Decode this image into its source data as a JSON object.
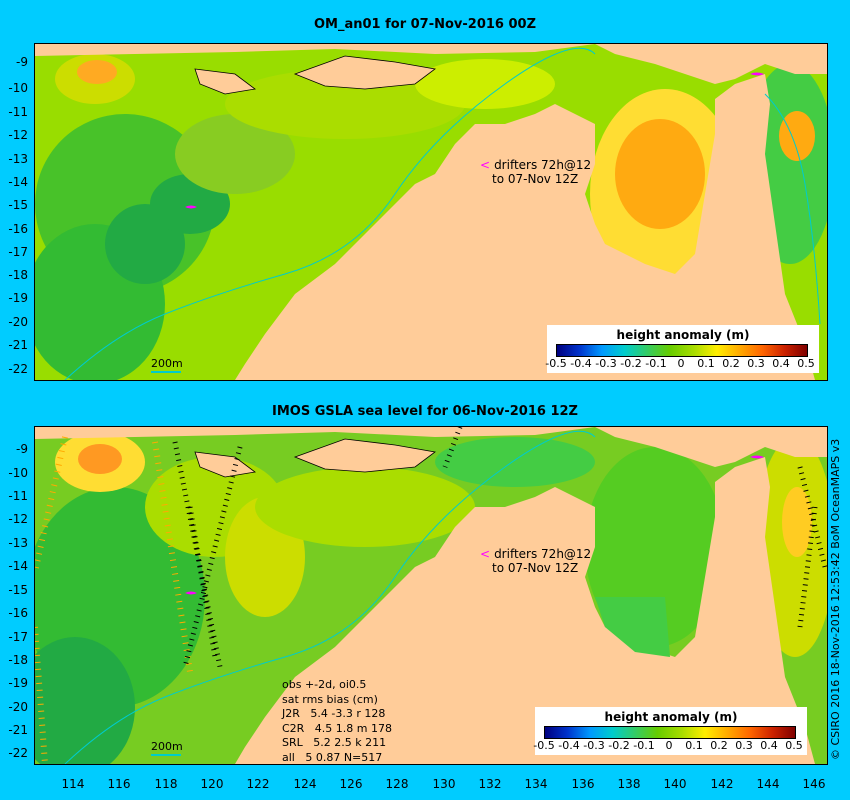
{
  "panel1": {
    "title": "OM_an01 for 07-Nov-2016 00Z",
    "drifter_note_line1": "drifters 72h@12",
    "drifter_note_line2": "to 07-Nov 12Z",
    "scale_label": "200m"
  },
  "panel2": {
    "title": "IMOS GSLA sea level  for 06-Nov-2016 12Z",
    "drifter_note_line1": "drifters 72h@12",
    "drifter_note_line2": "to 07-Nov 12Z",
    "scale_label": "200m",
    "stats": [
      "obs +-2d, oi0.5",
      "sat rms bias (cm)",
      "J2R   5.4 -3.3 r 128",
      "C2R   4.5 1.8 m 178",
      "SRL   5.2 2.5 k 211",
      "all   5 0.87 N=517"
    ]
  },
  "legend": {
    "title": "height anomaly (m)",
    "labels": [
      "-0.5",
      "-0.4",
      "-0.3",
      "-0.2",
      "-0.1",
      "0",
      "0.1",
      "0.2",
      "0.3",
      "0.4",
      "0.5"
    ]
  },
  "y_ticks": [
    "-9",
    "-10",
    "-11",
    "-12",
    "-13",
    "-14",
    "-15",
    "-16",
    "-17",
    "-18",
    "-19",
    "-20",
    "-21",
    "-22"
  ],
  "x_ticks": [
    "114",
    "116",
    "118",
    "120",
    "122",
    "124",
    "126",
    "128",
    "130",
    "132",
    "134",
    "136",
    "138",
    "140",
    "142",
    "144",
    "146"
  ],
  "credit": "© CSIRO 2016  18-Nov-2016 12:53:42 BoM OceanMAPS v3",
  "colors": {
    "background": "#00ccff",
    "land": "#ffcc99",
    "shelf": "#999999",
    "drifter": "#ff00ff"
  }
}
